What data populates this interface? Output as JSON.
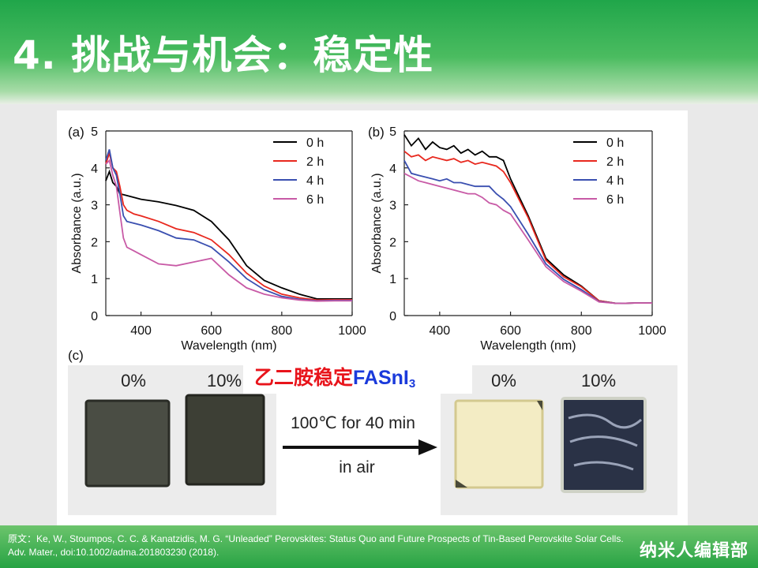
{
  "slide": {
    "title": "4. 挑战与机会：稳定性",
    "citation": "原文：Ke, W., Stoumpos, C. C. & Kanatzidis, M. G. “Unleaded” Perovskites: Status Quo and Future Prospects of Tin-Based Perovskite Solar Cells. Adv. Mater., doi:10.1002/adma.201803230  (2018).",
    "brand": "纳米人编辑部",
    "overlay": {
      "chinese": "乙二胺稳定",
      "formula": "FASnI",
      "subscript": "3"
    }
  },
  "photo_panel": {
    "label": "(c)",
    "left_pct_0": "0%",
    "left_pct_10": "10%",
    "right_pct_0": "0%",
    "right_pct_10": "10%",
    "condition_line1": "100℃ for 40 min",
    "condition_line2": "in air"
  },
  "chart_data": [
    {
      "type": "line",
      "panel_label": "(a)",
      "xlabel": "Wavelength (nm)",
      "ylabel": "Absorbance (a.u.)",
      "xlim": [
        300,
        1000
      ],
      "ylim": [
        0,
        5
      ],
      "xticks": [
        400,
        600,
        800,
        1000
      ],
      "yticks": [
        0,
        1,
        2,
        3,
        4,
        5
      ],
      "legend_position": "top-right",
      "series": [
        {
          "name": "0 h",
          "color": "#000000",
          "x": [
            300,
            310,
            320,
            330,
            340,
            360,
            380,
            400,
            450,
            500,
            550,
            600,
            650,
            700,
            750,
            800,
            850,
            900,
            950,
            1000
          ],
          "y": [
            3.65,
            3.9,
            3.6,
            3.5,
            3.3,
            3.25,
            3.2,
            3.15,
            3.08,
            2.98,
            2.85,
            2.55,
            2.05,
            1.35,
            0.95,
            0.75,
            0.58,
            0.45,
            0.45,
            0.45
          ]
        },
        {
          "name": "2 h",
          "color": "#e8281e",
          "x": [
            300,
            310,
            320,
            330,
            340,
            350,
            360,
            380,
            400,
            450,
            500,
            550,
            600,
            650,
            700,
            750,
            800,
            850,
            900,
            950,
            1000
          ],
          "y": [
            4.1,
            4.4,
            4.0,
            3.9,
            3.5,
            3.0,
            2.85,
            2.75,
            2.7,
            2.55,
            2.35,
            2.25,
            2.05,
            1.65,
            1.15,
            0.8,
            0.58,
            0.48,
            0.42,
            0.43,
            0.43
          ]
        },
        {
          "name": "4 h",
          "color": "#3a4fb0",
          "x": [
            300,
            310,
            320,
            330,
            340,
            350,
            360,
            380,
            400,
            450,
            500,
            550,
            600,
            650,
            700,
            750,
            800,
            850,
            900,
            950,
            1000
          ],
          "y": [
            4.2,
            4.5,
            4.0,
            3.8,
            3.3,
            2.7,
            2.55,
            2.5,
            2.45,
            2.3,
            2.1,
            2.05,
            1.85,
            1.45,
            1.0,
            0.7,
            0.52,
            0.44,
            0.4,
            0.41,
            0.41
          ]
        },
        {
          "name": "6 h",
          "color": "#c85aa6",
          "x": [
            300,
            310,
            320,
            330,
            340,
            350,
            360,
            380,
            400,
            450,
            500,
            550,
            600,
            650,
            700,
            750,
            800,
            850,
            900,
            950,
            1000
          ],
          "y": [
            4.1,
            4.2,
            3.8,
            3.5,
            2.8,
            2.1,
            1.85,
            1.75,
            1.65,
            1.4,
            1.35,
            1.45,
            1.55,
            1.1,
            0.75,
            0.58,
            0.48,
            0.42,
            0.39,
            0.4,
            0.4
          ]
        }
      ]
    },
    {
      "type": "line",
      "panel_label": "(b)",
      "xlabel": "Wavelength (nm)",
      "ylabel": "Absorbance (a.u.)",
      "xlim": [
        300,
        1000
      ],
      "ylim": [
        0,
        5
      ],
      "xticks": [
        400,
        600,
        800,
        1000
      ],
      "yticks": [
        0,
        1,
        2,
        3,
        4,
        5
      ],
      "legend_position": "top-right",
      "series": [
        {
          "name": "0 h",
          "color": "#000000",
          "x": [
            300,
            320,
            340,
            360,
            380,
            400,
            420,
            440,
            460,
            480,
            500,
            520,
            540,
            560,
            580,
            600,
            650,
            700,
            750,
            800,
            850,
            900,
            950,
            1000
          ],
          "y": [
            4.9,
            4.6,
            4.8,
            4.5,
            4.7,
            4.55,
            4.5,
            4.6,
            4.4,
            4.5,
            4.35,
            4.45,
            4.3,
            4.3,
            4.2,
            3.7,
            2.7,
            1.55,
            1.1,
            0.8,
            0.4,
            0.33,
            0.34,
            0.34
          ]
        },
        {
          "name": "2 h",
          "color": "#e8281e",
          "x": [
            300,
            320,
            340,
            360,
            380,
            400,
            420,
            440,
            460,
            480,
            500,
            520,
            540,
            560,
            580,
            600,
            650,
            700,
            750,
            800,
            850,
            900,
            950,
            1000
          ],
          "y": [
            4.45,
            4.3,
            4.35,
            4.2,
            4.3,
            4.25,
            4.2,
            4.25,
            4.15,
            4.2,
            4.1,
            4.15,
            4.1,
            4.05,
            3.9,
            3.6,
            2.65,
            1.5,
            1.05,
            0.78,
            0.4,
            0.33,
            0.34,
            0.34
          ]
        },
        {
          "name": "4 h",
          "color": "#3a4fb0",
          "x": [
            300,
            320,
            340,
            360,
            380,
            400,
            420,
            440,
            460,
            480,
            500,
            520,
            540,
            560,
            580,
            600,
            650,
            700,
            750,
            800,
            850,
            900,
            950,
            1000
          ],
          "y": [
            4.2,
            3.85,
            3.8,
            3.75,
            3.7,
            3.65,
            3.7,
            3.6,
            3.6,
            3.55,
            3.5,
            3.5,
            3.5,
            3.3,
            3.15,
            2.95,
            2.2,
            1.4,
            0.98,
            0.7,
            0.38,
            0.33,
            0.34,
            0.34
          ]
        },
        {
          "name": "6 h",
          "color": "#c85aa6",
          "x": [
            300,
            320,
            340,
            360,
            380,
            400,
            420,
            440,
            460,
            480,
            500,
            520,
            540,
            560,
            580,
            600,
            650,
            700,
            750,
            800,
            850,
            900,
            950,
            1000
          ],
          "y": [
            3.85,
            3.75,
            3.65,
            3.6,
            3.55,
            3.5,
            3.45,
            3.4,
            3.35,
            3.3,
            3.3,
            3.2,
            3.05,
            3.0,
            2.85,
            2.75,
            2.05,
            1.32,
            0.92,
            0.66,
            0.37,
            0.33,
            0.34,
            0.34
          ]
        }
      ]
    }
  ]
}
